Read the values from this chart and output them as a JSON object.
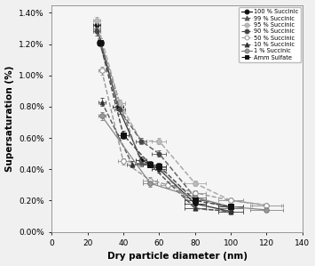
{
  "title": "",
  "xlabel": "Dry particle diameter (nm)",
  "ylabel": "Supersaturation (%)",
  "xlim": [
    0,
    140
  ],
  "ylim": [
    0.0,
    0.0145
  ],
  "yticks": [
    0.0,
    0.002,
    0.004,
    0.006,
    0.008,
    0.01,
    0.012,
    0.014
  ],
  "ytick_labels": [
    "0.00%",
    "0.20%",
    "0.40%",
    "0.60%",
    "0.80%",
    "1.00%",
    "1.20%",
    "1.40%"
  ],
  "xticks": [
    0,
    20,
    40,
    60,
    80,
    100,
    120,
    140
  ],
  "series": [
    {
      "label": "100 % Succinic",
      "marker": "o",
      "marker_color": "#111111",
      "marker_face": "#111111",
      "line_color": "#333333",
      "line_style": "-",
      "line_width": 0.9,
      "marker_size": 3.5,
      "x": [
        25,
        37,
        50,
        60,
        80,
        100
      ],
      "y": [
        0.0132,
        0.008,
        0.0046,
        0.004,
        0.0018,
        0.0013
      ],
      "xerr": [
        2,
        3,
        3,
        4,
        6,
        7
      ],
      "yerr": [
        0.00025,
        0.00025,
        0.0002,
        0.0002,
        8e-05,
        8e-05
      ]
    },
    {
      "label": "99 % Succinic",
      "marker": "^",
      "marker_color": "#555555",
      "marker_face": "#555555",
      "line_color": "#777777",
      "line_style": "--",
      "line_width": 1.0,
      "marker_size": 3.5,
      "x": [
        25,
        38,
        50,
        60,
        80,
        100
      ],
      "y": [
        0.013,
        0.0082,
        0.0044,
        0.0041,
        0.0015,
        0.0013
      ],
      "xerr": [
        2,
        3,
        3,
        4,
        6,
        7
      ],
      "yerr": [
        0.00025,
        0.00025,
        0.0002,
        0.0002,
        8e-05,
        8e-05
      ]
    },
    {
      "label": "95 % Succinic",
      "marker": "o",
      "marker_color": "#aaaaaa",
      "marker_face": "#bbbbbb",
      "line_color": "#aaaaaa",
      "line_style": "--",
      "line_width": 1.1,
      "marker_size": 4.0,
      "x": [
        25,
        38,
        50,
        60,
        80,
        100,
        120
      ],
      "y": [
        0.0135,
        0.0082,
        0.0058,
        0.0058,
        0.0031,
        0.002,
        0.0017
      ],
      "xerr": [
        2,
        3,
        3,
        4,
        6,
        7,
        8
      ],
      "yerr": [
        0.00025,
        0.00025,
        0.0002,
        0.0002,
        0.00015,
        0.0001,
        0.0001
      ]
    },
    {
      "label": "90 % Succinic",
      "marker": "o",
      "marker_color": "#444444",
      "marker_face": "#444444",
      "line_color": "#666666",
      "line_style": "--",
      "line_width": 1.1,
      "marker_size": 3.5,
      "x": [
        25,
        38,
        50,
        60,
        80,
        100
      ],
      "y": [
        0.0128,
        0.0078,
        0.0058,
        0.005,
        0.0022,
        0.0015
      ],
      "xerr": [
        2,
        3,
        3,
        4,
        6,
        7
      ],
      "yerr": [
        0.00025,
        0.00025,
        0.0002,
        0.0002,
        8e-05,
        8e-05
      ]
    },
    {
      "label": "50 % Succinic",
      "marker": "o",
      "marker_color": "#888888",
      "marker_face": "#ffffff",
      "line_color": "#999999",
      "line_style": "--",
      "line_width": 1.0,
      "marker_size": 4.0,
      "x": [
        28,
        40,
        55,
        65,
        80,
        100,
        120
      ],
      "y": [
        0.0103,
        0.0045,
        0.0033,
        0.003,
        0.0025,
        0.002,
        0.0017
      ],
      "xerr": [
        2,
        3,
        4,
        4,
        6,
        7,
        9
      ],
      "yerr": [
        0.00025,
        0.0002,
        0.0002,
        0.0002,
        0.00012,
        0.0001,
        0.0001
      ]
    },
    {
      "label": "10 % Succinic",
      "marker": "^",
      "marker_color": "#333333",
      "marker_face": "#333333",
      "line_color": "#555555",
      "line_style": "--",
      "line_width": 1.0,
      "marker_size": 3.5,
      "x": [
        28,
        45,
        55,
        80,
        100
      ],
      "y": [
        0.0083,
        0.0043,
        0.0043,
        0.0015,
        0.0013
      ],
      "xerr": [
        2,
        3,
        4,
        6,
        7
      ],
      "yerr": [
        0.00025,
        0.0002,
        0.0002,
        8e-05,
        8e-05
      ]
    },
    {
      "label": "1 % Succinic",
      "marker": "o",
      "marker_color": "#777777",
      "marker_face": "#999999",
      "line_color": "#888888",
      "line_style": "-",
      "line_width": 0.9,
      "marker_size": 4.0,
      "x": [
        28,
        55,
        80,
        100,
        120
      ],
      "y": [
        0.0074,
        0.0031,
        0.0022,
        0.0016,
        0.0014
      ],
      "xerr": [
        2,
        4,
        6,
        7,
        9
      ],
      "yerr": [
        0.00025,
        0.0002,
        0.00012,
        0.0001,
        0.0001
      ]
    },
    {
      "label": "Amm Sulfate",
      "marker": "s",
      "marker_color": "#111111",
      "marker_face": "#111111",
      "line_color": "#444444",
      "line_style": "--",
      "line_width": 1.0,
      "marker_size": 4.0,
      "x": [
        27,
        40,
        55,
        60,
        80,
        100
      ],
      "y": [
        0.0121,
        0.0062,
        0.0043,
        0.0042,
        0.002,
        0.0016
      ],
      "xerr": [
        2,
        3,
        4,
        4,
        6,
        7
      ],
      "yerr": [
        0.00025,
        0.00025,
        0.0002,
        0.0002,
        8e-05,
        8e-05
      ]
    }
  ],
  "legend_entries": [
    {
      "label": "100 % Succinic",
      "marker": "o",
      "color": "#111111",
      "mfc": "#111111",
      "ls": "-"
    },
    {
      "label": "99 % Succinic",
      "marker": "^",
      "color": "#555555",
      "mfc": "#555555",
      "ls": "--"
    },
    {
      "label": "95 % Succinic",
      "marker": "o",
      "color": "#aaaaaa",
      "mfc": "#bbbbbb",
      "ls": "--"
    },
    {
      "label": "90 % Succinic",
      "marker": "o",
      "color": "#444444",
      "mfc": "#444444",
      "ls": "--"
    },
    {
      "label": "50 % Succinic",
      "marker": "o",
      "color": "#999999",
      "mfc": "#ffffff",
      "ls": "--"
    },
    {
      "label": "10 % Succinic",
      "marker": "^",
      "color": "#333333",
      "mfc": "#333333",
      "ls": "--"
    },
    {
      "label": "1 % Succinic",
      "marker": "o",
      "color": "#777777",
      "mfc": "#999999",
      "ls": "-"
    },
    {
      "label": "Amm Sulfate",
      "marker": "s",
      "color": "#111111",
      "mfc": "#111111",
      "ls": "--"
    }
  ],
  "fig_bg": "#f0f0f0",
  "plot_bg": "#f5f5f5"
}
